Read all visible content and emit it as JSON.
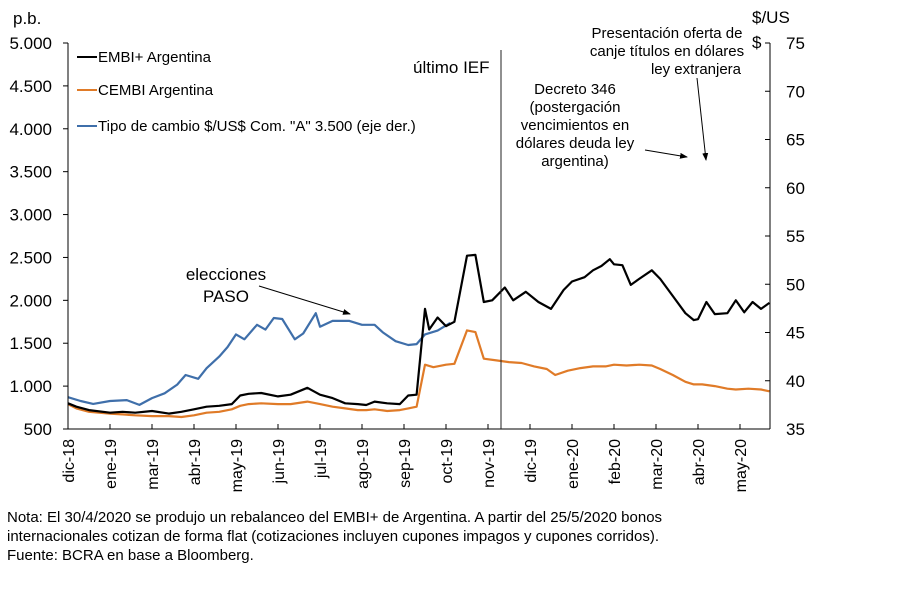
{
  "chart_data": {
    "type": "line",
    "title": "",
    "ylabel": "p.b.",
    "y2label": "$/US$",
    "ylim": [
      500,
      5000
    ],
    "y2lim": [
      35,
      75
    ],
    "yticks": [
      "500",
      "1.000",
      "1.500",
      "2.000",
      "2.500",
      "3.000",
      "3.500",
      "4.000",
      "4.500",
      "5.000"
    ],
    "ytick_values": [
      500,
      1000,
      1500,
      2000,
      2500,
      3000,
      3500,
      4000,
      4500,
      5000
    ],
    "y2ticks": [
      "35",
      "40",
      "45",
      "50",
      "55",
      "60",
      "65",
      "70",
      "75"
    ],
    "y2tick_values": [
      35,
      40,
      45,
      50,
      55,
      60,
      65,
      70,
      75
    ],
    "x_unit": "months since dic-18 tick",
    "xlim": [
      0,
      16.7
    ],
    "categories": [
      "dic-18",
      "ene-19",
      "mar-19",
      "abr-19",
      "may-19",
      "jun-19",
      "jul-19",
      "ago-19",
      "sep-19",
      "oct-19",
      "nov-19",
      "dic-19",
      "ene-20",
      "feb-20",
      "mar-20",
      "abr-20",
      "may-20"
    ],
    "grid": false,
    "legend_position": "top-left",
    "series": [
      {
        "name": "EMBI+ Argentina",
        "color": "#000000",
        "axis": "left",
        "points": [
          [
            0,
            800
          ],
          [
            0.2,
            760
          ],
          [
            0.5,
            720
          ],
          [
            1,
            690
          ],
          [
            1.3,
            700
          ],
          [
            1.6,
            690
          ],
          [
            2,
            710
          ],
          [
            2.4,
            680
          ],
          [
            2.7,
            700
          ],
          [
            3,
            730
          ],
          [
            3.3,
            760
          ],
          [
            3.6,
            770
          ],
          [
            3.9,
            790
          ],
          [
            4.1,
            890
          ],
          [
            4.3,
            910
          ],
          [
            4.6,
            920
          ],
          [
            5,
            880
          ],
          [
            5.3,
            900
          ],
          [
            5.7,
            980
          ],
          [
            6,
            900
          ],
          [
            6.3,
            860
          ],
          [
            6.6,
            800
          ],
          [
            6.9,
            790
          ],
          [
            7.1,
            780
          ],
          [
            7.3,
            820
          ],
          [
            7.6,
            800
          ],
          [
            7.9,
            790
          ],
          [
            8.1,
            890
          ],
          [
            8.3,
            900
          ],
          [
            8.5,
            1900
          ],
          [
            8.6,
            1660
          ],
          [
            8.8,
            1800
          ],
          [
            9.0,
            1700
          ],
          [
            9.2,
            1750
          ],
          [
            9.5,
            2520
          ],
          [
            9.7,
            2530
          ],
          [
            9.9,
            1980
          ],
          [
            10.1,
            2000
          ],
          [
            10.4,
            2150
          ],
          [
            10.6,
            2000
          ],
          [
            10.9,
            2100
          ],
          [
            11.2,
            1980
          ],
          [
            11.5,
            1900
          ],
          [
            11.8,
            2120
          ],
          [
            12.0,
            2220
          ],
          [
            12.3,
            2270
          ],
          [
            12.5,
            2350
          ],
          [
            12.7,
            2400
          ],
          [
            12.9,
            2480
          ],
          [
            13.0,
            2420
          ],
          [
            13.2,
            2410
          ],
          [
            13.4,
            2180
          ],
          [
            13.6,
            2250
          ],
          [
            13.9,
            2350
          ],
          [
            14.1,
            2250
          ],
          [
            14.4,
            2050
          ],
          [
            14.7,
            1850
          ],
          [
            14.9,
            1770
          ],
          [
            15.0,
            1780
          ],
          [
            15.2,
            1980
          ],
          [
            15.4,
            1840
          ],
          [
            15.7,
            1850
          ],
          [
            15.9,
            2000
          ],
          [
            16.1,
            1860
          ],
          [
            16.3,
            1980
          ],
          [
            16.5,
            1900
          ],
          [
            16.7,
            1970
          ]
        ]
      },
      {
        "name": "CEMBI Argentina",
        "color": "#E07B28",
        "axis": "left",
        "points": [
          [
            0,
            790
          ],
          [
            0.2,
            740
          ],
          [
            0.5,
            700
          ],
          [
            1,
            680
          ],
          [
            1.3,
            670
          ],
          [
            1.6,
            660
          ],
          [
            2,
            650
          ],
          [
            2.4,
            650
          ],
          [
            2.7,
            640
          ],
          [
            3,
            660
          ],
          [
            3.3,
            690
          ],
          [
            3.6,
            700
          ],
          [
            3.9,
            730
          ],
          [
            4.1,
            770
          ],
          [
            4.3,
            790
          ],
          [
            4.6,
            800
          ],
          [
            5,
            790
          ],
          [
            5.3,
            790
          ],
          [
            5.7,
            820
          ],
          [
            6,
            790
          ],
          [
            6.3,
            760
          ],
          [
            6.6,
            740
          ],
          [
            6.9,
            720
          ],
          [
            7.1,
            720
          ],
          [
            7.3,
            730
          ],
          [
            7.6,
            710
          ],
          [
            7.9,
            720
          ],
          [
            8.1,
            740
          ],
          [
            8.3,
            760
          ],
          [
            8.5,
            1250
          ],
          [
            8.7,
            1220
          ],
          [
            9.0,
            1250
          ],
          [
            9.2,
            1260
          ],
          [
            9.5,
            1650
          ],
          [
            9.7,
            1630
          ],
          [
            9.9,
            1320
          ],
          [
            10.2,
            1300
          ],
          [
            10.5,
            1280
          ],
          [
            10.8,
            1270
          ],
          [
            11.1,
            1230
          ],
          [
            11.4,
            1200
          ],
          [
            11.6,
            1130
          ],
          [
            11.9,
            1180
          ],
          [
            12.2,
            1210
          ],
          [
            12.5,
            1230
          ],
          [
            12.8,
            1230
          ],
          [
            13.0,
            1250
          ],
          [
            13.3,
            1240
          ],
          [
            13.6,
            1250
          ],
          [
            13.9,
            1240
          ],
          [
            14.1,
            1200
          ],
          [
            14.4,
            1130
          ],
          [
            14.7,
            1050
          ],
          [
            14.9,
            1020
          ],
          [
            15.1,
            1020
          ],
          [
            15.4,
            1000
          ],
          [
            15.7,
            970
          ],
          [
            15.9,
            960
          ],
          [
            16.2,
            970
          ],
          [
            16.5,
            960
          ],
          [
            16.7,
            940
          ]
        ]
      },
      {
        "name": "Tipo de cambio $/US$ Com. \"A\" 3.500 (eje der.)",
        "color": "#3F6FAA",
        "axis": "right",
        "points": [
          [
            0,
            38.3
          ],
          [
            0.3,
            37.9
          ],
          [
            0.6,
            37.6
          ],
          [
            1,
            37.9
          ],
          [
            1.4,
            38.0
          ],
          [
            1.7,
            37.5
          ],
          [
            2,
            38.2
          ],
          [
            2.3,
            38.7
          ],
          [
            2.6,
            39.6
          ],
          [
            2.8,
            40.6
          ],
          [
            3.1,
            40.2
          ],
          [
            3.3,
            41.3
          ],
          [
            3.6,
            42.5
          ],
          [
            3.8,
            43.5
          ],
          [
            4.0,
            44.8
          ],
          [
            4.2,
            44.3
          ],
          [
            4.5,
            45.8
          ],
          [
            4.7,
            45.3
          ],
          [
            4.9,
            46.5
          ],
          [
            5.1,
            46.4
          ],
          [
            5.4,
            44.3
          ],
          [
            5.6,
            44.9
          ],
          [
            5.9,
            47.0
          ],
          [
            6.0,
            45.6
          ],
          [
            6.3,
            46.2
          ],
          [
            6.7,
            46.2
          ],
          [
            7.0,
            45.8
          ],
          [
            7.3,
            45.8
          ],
          [
            7.5,
            45.0
          ],
          [
            7.8,
            44.1
          ],
          [
            8.1,
            43.7
          ],
          [
            8.3,
            43.8
          ],
          [
            8.5,
            44.8
          ],
          [
            8.8,
            45.2
          ],
          [
            9.1,
            46.0
          ]
        ]
      }
    ],
    "annotations": [
      {
        "text": "elecciones PASO",
        "lines": [
          "elecciones",
          "PASO"
        ]
      },
      {
        "text": "último IEF",
        "lines": [
          "último IEF"
        ]
      },
      {
        "text": "Decreto 346 (postergación vencimientos en dólares deuda ley argentina)",
        "lines": [
          "Decreto 346",
          "(postergación",
          "vencimientos en",
          "dólares deuda ley",
          "argentina)"
        ]
      },
      {
        "text": "Presentación oferta de canje títulos en dólares ley extranjera",
        "lines": [
          "Presentación oferta de",
          "canje títulos en dólares",
          "ley extranjera"
        ]
      }
    ]
  },
  "notes": {
    "line1": "Nota: El 30/4/2020 se produjo un rebalanceo del EMBI+ de Argentina. A partir del 25/5/2020 bonos",
    "line2": "internacionales cotizan de forma flat (cotizaciones incluyen cupones impagos y cupones corridos).",
    "line3": "Fuente: BCRA en base a Bloomberg."
  }
}
